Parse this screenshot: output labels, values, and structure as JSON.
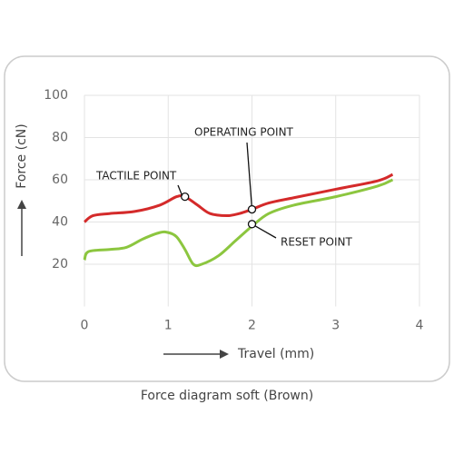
{
  "chart_data": {
    "type": "line",
    "caption": "Force diagram soft (Brown)",
    "x_label": "Travel (mm)",
    "y_label": "Force (cN)",
    "xlim": [
      0,
      4
    ],
    "xticks": [
      0,
      1,
      2,
      3,
      4
    ],
    "ylim": [
      0,
      100
    ],
    "yticks": [
      20,
      40,
      60,
      80,
      100
    ],
    "grid": true,
    "series": [
      {
        "color": "#d42a2a",
        "x": [
          0,
          0.1,
          0.3,
          0.6,
          0.9,
          1.1,
          1.2,
          1.35,
          1.5,
          1.7,
          1.85,
          2.0,
          2.2,
          2.5,
          3.0,
          3.5,
          3.68
        ],
        "values": [
          40,
          43,
          44,
          45,
          48,
          52,
          52,
          48,
          44,
          43,
          44,
          46,
          49,
          51.5,
          55.5,
          59.5,
          62.5
        ]
      },
      {
        "color": "#8cc63f",
        "x": [
          0,
          0.05,
          0.3,
          0.5,
          0.7,
          0.9,
          1.0,
          1.1,
          1.2,
          1.3,
          1.4,
          1.6,
          1.8,
          2.0,
          2.2,
          2.5,
          3.0,
          3.5,
          3.68
        ],
        "values": [
          22,
          26,
          27,
          28,
          32,
          35,
          35,
          33,
          27,
          20,
          20,
          24,
          31,
          38,
          44,
          48,
          52,
          57,
          60
        ]
      }
    ],
    "annotations": [
      {
        "text": "TACTILE POINT",
        "x": 1.2,
        "y": 52
      },
      {
        "text": "OPERATING POINT",
        "x": 2.0,
        "y": 46
      },
      {
        "text": "RESET POINT",
        "x": 2.0,
        "y": 39
      }
    ]
  }
}
